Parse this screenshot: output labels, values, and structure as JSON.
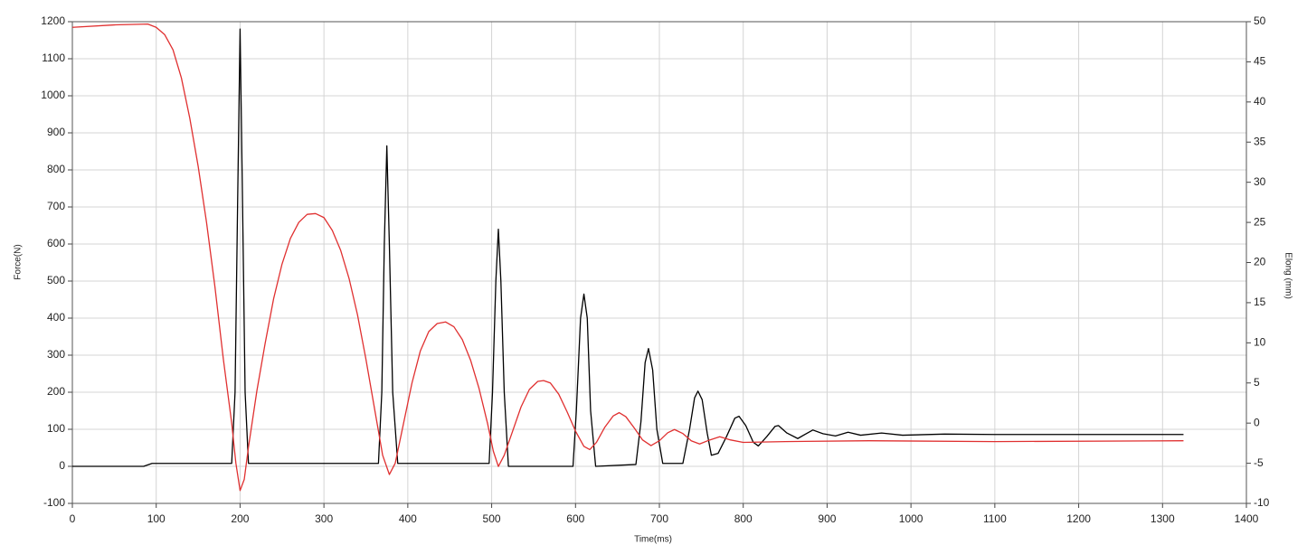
{
  "chart_data": {
    "type": "line",
    "xlabel": "Time(ms)",
    "ylabel": "Force(N)",
    "y2label": "Elong (mm)",
    "xlim": [
      0,
      1400
    ],
    "xticks": [
      0,
      100,
      200,
      300,
      400,
      500,
      600,
      700,
      800,
      900,
      1000,
      1100,
      1200,
      1300,
      1400
    ],
    "ylim": [
      -100,
      1200
    ],
    "yticks": [
      -100,
      0,
      100,
      200,
      300,
      400,
      500,
      600,
      700,
      800,
      900,
      1000,
      1100,
      1200
    ],
    "y2lim": [
      -10,
      50
    ],
    "y2ticks": [
      -10,
      -5,
      0,
      5,
      10,
      15,
      20,
      25,
      30,
      35,
      40,
      45,
      50
    ],
    "grid": true,
    "series": [
      {
        "color": "#000000",
        "axis": "y",
        "x": [
          0,
          85,
          95,
          190,
          194,
          197,
          200,
          203,
          206,
          210,
          365,
          369,
          372,
          375,
          378,
          382,
          388,
          497,
          501,
          505,
          508,
          511,
          515,
          520,
          597,
          601,
          606,
          610,
          614,
          618,
          624,
          672,
          678,
          683,
          687,
          692,
          697,
          704,
          728,
          736,
          742,
          746,
          751,
          757,
          762,
          770,
          780,
          790,
          795,
          803,
          812,
          818,
          828,
          838,
          842,
          852,
          865,
          875,
          883,
          895,
          910,
          925,
          940,
          965,
          990,
          1040,
          1100,
          1200,
          1325
        ],
        "values": [
          0,
          0,
          8,
          8,
          200,
          700,
          1180,
          700,
          200,
          8,
          8,
          200,
          600,
          865,
          600,
          200,
          8,
          8,
          200,
          500,
          640,
          500,
          200,
          0,
          0,
          150,
          400,
          465,
          400,
          150,
          0,
          5,
          120,
          280,
          318,
          260,
          100,
          8,
          8,
          100,
          185,
          203,
          180,
          90,
          30,
          35,
          80,
          130,
          135,
          110,
          65,
          55,
          80,
          108,
          110,
          90,
          75,
          88,
          98,
          88,
          82,
          92,
          84,
          90,
          84,
          87,
          86,
          86,
          86
        ]
      },
      {
        "color": "#e03030",
        "axis": "y2",
        "x": [
          0,
          50,
          90,
          100,
          110,
          120,
          130,
          140,
          150,
          160,
          170,
          180,
          190,
          195,
          200,
          205,
          210,
          220,
          230,
          240,
          250,
          260,
          270,
          280,
          290,
          300,
          310,
          320,
          330,
          340,
          350,
          360,
          370,
          378,
          385,
          395,
          405,
          415,
          425,
          435,
          445,
          455,
          465,
          475,
          485,
          495,
          502,
          508,
          515,
          525,
          535,
          545,
          555,
          562,
          570,
          580,
          590,
          600,
          610,
          617,
          625,
          635,
          645,
          652,
          660,
          670,
          680,
          690,
          700,
          710,
          718,
          728,
          738,
          748,
          760,
          772,
          785,
          800,
          850,
          950,
          1100,
          1325
        ],
        "values": [
          49.3,
          49.6,
          49.7,
          49.3,
          48.4,
          46.5,
          43,
          38,
          32,
          25,
          17,
          8,
          0,
          -5,
          -8.4,
          -7,
          -3,
          4,
          10,
          15.5,
          19.8,
          23,
          25,
          26,
          26.1,
          25.6,
          24,
          21.5,
          18,
          13.5,
          8,
          2,
          -4,
          -6.4,
          -5,
          0,
          5,
          9,
          11.4,
          12.4,
          12.6,
          12,
          10.4,
          7.8,
          4.3,
          0,
          -3.5,
          -5.4,
          -4,
          -1,
          2,
          4.2,
          5.2,
          5.3,
          5,
          3.6,
          1.4,
          -1,
          -2.9,
          -3.3,
          -2.4,
          -0.5,
          0.9,
          1.3,
          0.8,
          -0.6,
          -2.1,
          -2.8,
          -2.2,
          -1.2,
          -0.8,
          -1.3,
          -2.2,
          -2.6,
          -2.1,
          -1.7,
          -2.1,
          -2.4,
          -2.3,
          -2.2,
          -2.3,
          -2.2
        ]
      }
    ]
  }
}
